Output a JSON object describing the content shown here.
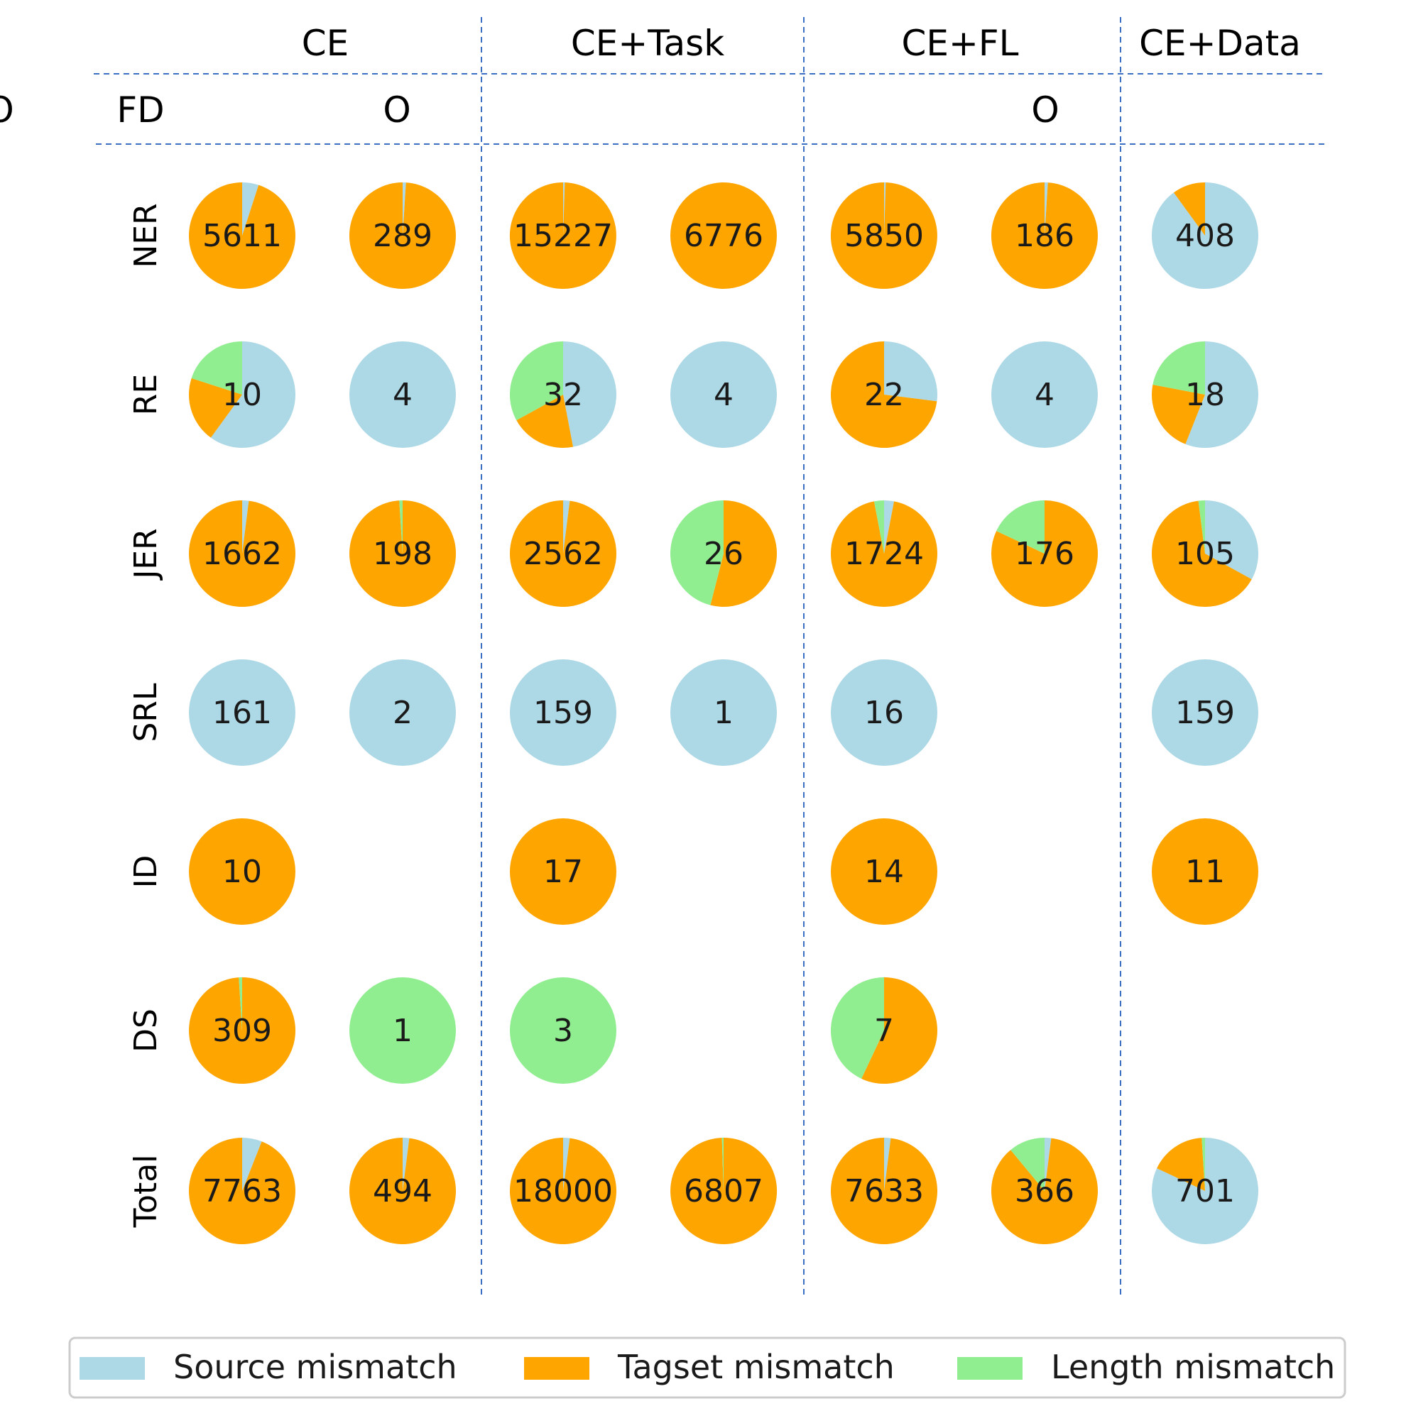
{
  "colors": {
    "source": "#add8e6",
    "tagset": "#ffa500",
    "length": "#90ee90",
    "divider": "#3a6fc4"
  },
  "chart_data": {
    "type": "pie",
    "groups": [
      "CE",
      "CE+Task",
      "CE+FL",
      "CE+Data"
    ],
    "subheaders": [
      "FD",
      "O",
      "",
      "O",
      "",
      "O",
      ""
    ],
    "rows": [
      "NER",
      "RE",
      "JER",
      "SRL",
      "ID",
      "DS",
      "Total"
    ],
    "legend": [
      {
        "key": "source",
        "label": "Source mismatch"
      },
      {
        "key": "tagset",
        "label": "Tagset mismatch"
      },
      {
        "key": "length",
        "label": "Length mismatch"
      }
    ],
    "legend_position": "bottom",
    "cells": [
      [
        {
          "total": 5611,
          "fractions": [
            0.05,
            0.95,
            0.0
          ]
        },
        {
          "total": 289,
          "fractions": [
            0.01,
            0.99,
            0.0
          ]
        },
        {
          "total": 15227,
          "fractions": [
            0.005,
            0.995,
            0.0
          ]
        },
        {
          "total": 6776,
          "fractions": [
            0.0,
            1.0,
            0.0
          ]
        },
        {
          "total": 5850,
          "fractions": [
            0.005,
            0.995,
            0.0
          ]
        },
        {
          "total": 186,
          "fractions": [
            0.01,
            0.99,
            0.0
          ]
        },
        {
          "total": 408,
          "fractions": [
            0.9,
            0.1,
            0.0
          ]
        }
      ],
      [
        {
          "total": 10,
          "fractions": [
            0.6,
            0.2,
            0.2
          ]
        },
        {
          "total": 4,
          "fractions": [
            1.0,
            0.0,
            0.0
          ]
        },
        {
          "total": 32,
          "fractions": [
            0.47,
            0.2,
            0.33
          ]
        },
        {
          "total": 4,
          "fractions": [
            1.0,
            0.0,
            0.0
          ]
        },
        {
          "total": 22,
          "fractions": [
            0.27,
            0.73,
            0.0
          ]
        },
        {
          "total": 4,
          "fractions": [
            1.0,
            0.0,
            0.0
          ]
        },
        {
          "total": 18,
          "fractions": [
            0.56,
            0.22,
            0.22
          ]
        }
      ],
      [
        {
          "total": 1662,
          "fractions": [
            0.02,
            0.98,
            0.0
          ]
        },
        {
          "total": 198,
          "fractions": [
            0.0,
            0.99,
            0.01
          ]
        },
        {
          "total": 2562,
          "fractions": [
            0.02,
            0.98,
            0.0
          ]
        },
        {
          "total": 26,
          "fractions": [
            0.0,
            0.54,
            0.46
          ]
        },
        {
          "total": 1724,
          "fractions": [
            0.03,
            0.94,
            0.03
          ]
        },
        {
          "total": 176,
          "fractions": [
            0.0,
            0.82,
            0.18
          ]
        },
        {
          "total": 105,
          "fractions": [
            0.33,
            0.65,
            0.02
          ]
        }
      ],
      [
        {
          "total": 161,
          "fractions": [
            1.0,
            0.0,
            0.0
          ]
        },
        {
          "total": 2,
          "fractions": [
            1.0,
            0.0,
            0.0
          ]
        },
        {
          "total": 159,
          "fractions": [
            1.0,
            0.0,
            0.0
          ]
        },
        {
          "total": 1,
          "fractions": [
            1.0,
            0.0,
            0.0
          ]
        },
        {
          "total": 16,
          "fractions": [
            1.0,
            0.0,
            0.0
          ]
        },
        null,
        {
          "total": 159,
          "fractions": [
            1.0,
            0.0,
            0.0
          ]
        }
      ],
      [
        {
          "total": 10,
          "fractions": [
            0.0,
            1.0,
            0.0
          ]
        },
        null,
        {
          "total": 17,
          "fractions": [
            0.0,
            1.0,
            0.0
          ]
        },
        null,
        {
          "total": 14,
          "fractions": [
            0.0,
            1.0,
            0.0
          ]
        },
        null,
        {
          "total": 11,
          "fractions": [
            0.0,
            1.0,
            0.0
          ]
        }
      ],
      [
        {
          "total": 309,
          "fractions": [
            0.0,
            0.99,
            0.01
          ]
        },
        {
          "total": 1,
          "fractions": [
            0.0,
            0.0,
            1.0
          ]
        },
        {
          "total": 3,
          "fractions": [
            0.0,
            0.0,
            1.0
          ]
        },
        null,
        {
          "total": 7,
          "fractions": [
            0.0,
            0.57,
            0.43
          ]
        },
        null,
        null
      ],
      [
        {
          "total": 7763,
          "fractions": [
            0.06,
            0.94,
            0.0
          ]
        },
        {
          "total": 494,
          "fractions": [
            0.02,
            0.98,
            0.0
          ]
        },
        {
          "total": 18000,
          "fractions": [
            0.02,
            0.98,
            0.0
          ]
        },
        {
          "total": 6807,
          "fractions": [
            0.0,
            0.995,
            0.005
          ]
        },
        {
          "total": 7633,
          "fractions": [
            0.02,
            0.98,
            0.0
          ]
        },
        {
          "total": 366,
          "fractions": [
            0.02,
            0.87,
            0.11
          ]
        },
        {
          "total": 701,
          "fractions": [
            0.82,
            0.17,
            0.01
          ]
        }
      ]
    ]
  }
}
